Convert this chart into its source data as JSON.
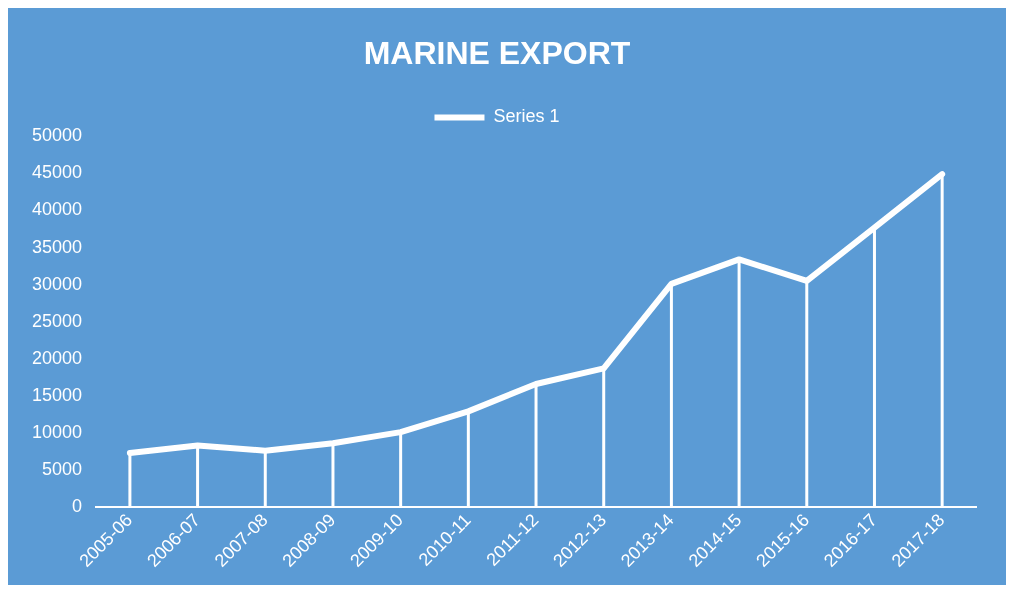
{
  "chart_data": {
    "type": "line",
    "title": "MARINE EXPORT",
    "categories": [
      "2005-06",
      "2006-07",
      "2007-08",
      "2008-09",
      "2009-10",
      "2010-11",
      "2011-12",
      "2012-13",
      "2013-14",
      "2014-15",
      "2015-16",
      "2016-17",
      "2017-18"
    ],
    "series": [
      {
        "name": "Series 1",
        "color": "#ffffff",
        "values": [
          7300,
          8300,
          7600,
          8600,
          10100,
          12900,
          16600,
          18700,
          30100,
          33400,
          30500,
          37700,
          44900
        ],
        "errors": [
          [
            0,
            7300
          ],
          [
            0,
            8300
          ],
          [
            0,
            7600
          ],
          [
            0,
            8600
          ],
          [
            0,
            10100
          ],
          [
            0,
            12900
          ],
          [
            0,
            16600
          ],
          [
            0,
            18700
          ],
          [
            0,
            30100
          ],
          [
            0,
            33400
          ],
          [
            0,
            30500
          ],
          [
            0,
            37700
          ],
          [
            0,
            44900
          ]
        ]
      }
    ],
    "ylim": [
      0,
      50000
    ],
    "yticks": [
      0,
      5000,
      10000,
      15000,
      20000,
      25000,
      30000,
      35000,
      40000,
      45000,
      50000
    ],
    "grid": false,
    "legend": "top",
    "marker": "none",
    "line_style": "solid"
  }
}
